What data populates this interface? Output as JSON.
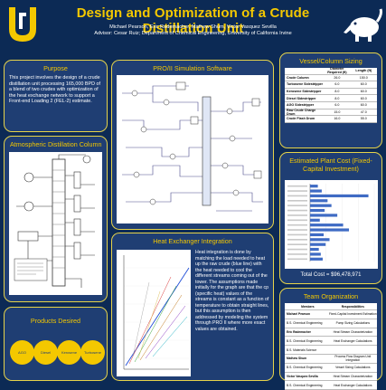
{
  "header": {
    "title": "Design and Optimization of a Crude Distillation Unit",
    "authors": "Michael Pearson, Eric Rademacher, Mathew Shum, Victor Vasquez Sevilla",
    "advisor": "Advisor: Cesar Ruiz; Department of Chemical Engineering, University of California Irvine"
  },
  "purpose": {
    "title": "Purpose",
    "text": "This project involves the design of a crude distillation unit processing 165,000 BPD of a blend of two crudes with optimization of the heat exchange network to support a Front-end Loading 2 (FEL-2) estimate."
  },
  "atmospheric": {
    "title": "Atmospheric Distillation Column"
  },
  "products": {
    "title": "Products Desired",
    "items": [
      "AGO",
      "Diesel",
      "Kerosene",
      "Turbosene"
    ]
  },
  "pro2": {
    "title": "PRO/II Simulation Software"
  },
  "hx": {
    "title": "Heat Exchanger Integration",
    "text": "Heat integration is done by matching the load needed to heat up the raw crude (blue line) with the heat needed to cool the different streams coming out of the tower. The assumptions made initially for the graph are that the cp (specific heat) values of the streams is constant as a function of temperature to obtain straight lines, but this assumption is then addressed by modeling the system through PRO II where more exact values are obtained."
  },
  "vessel": {
    "title": "Vessel/Column Sizing",
    "headers": [
      "",
      "Diameter Required (ft)",
      "Length (ft)"
    ],
    "rows": [
      [
        "Crude Column",
        "26.0",
        "150.0"
      ],
      [
        "Turbosene Sidestripper",
        "6.0",
        "60.0"
      ],
      [
        "Kerosene Sidestripper",
        "8.0",
        "60.0"
      ],
      [
        "Diesel Sidestripper",
        "8.0",
        "60.0"
      ],
      [
        "AGO Sidestripper",
        "6.0",
        "60.0"
      ],
      [
        "Raw Crude Charge Drum",
        "15.0",
        "47.0"
      ],
      [
        "Crude Flash Drum",
        "16.0",
        "55.0"
      ]
    ]
  },
  "cost": {
    "title": "Estimated Plant Cost (Fixed-Capital Investment)",
    "total": "Total Cost = $96,478,971"
  },
  "team": {
    "title": "Team Organization",
    "headers": [
      "Members",
      "Responsibilities"
    ],
    "rows": [
      [
        "Michael Pearson",
        "Fixed-Capital Investment Estimation"
      ],
      [
        "B.S. Chemical Engineering",
        "Pump Sizing Calculations"
      ],
      [
        "Eric Rademacher",
        "Heat Stream Characterization"
      ],
      [
        "B.S. Chemical Engineering",
        "Heat Exchanger Calculations"
      ],
      [
        "B.S. Materials Science",
        ""
      ],
      [
        "Mathew Shum",
        "Process Flow Diagram Unit Integration"
      ],
      [
        "B.S. Chemical Engineering",
        "Vessel Sizing Calculations"
      ],
      [
        "Victor Vasquez Sevilla",
        "Heat Stream Characterization"
      ],
      [
        "B.S. Chemical Engineering",
        "Heat Exchanger Calculations"
      ]
    ]
  },
  "chart_data": {
    "type": "bar",
    "categories": [
      "",
      "",
      "",
      "",
      "",
      "",
      "",
      "",
      "",
      "",
      "",
      "",
      "",
      "",
      "",
      ""
    ],
    "values": [
      8,
      12,
      60,
      18,
      22,
      15,
      28,
      10,
      34,
      40,
      14,
      20,
      16,
      9,
      11,
      13
    ],
    "title": "",
    "xlabel": "",
    "ylabel": "",
    "orientation": "horizontal"
  }
}
